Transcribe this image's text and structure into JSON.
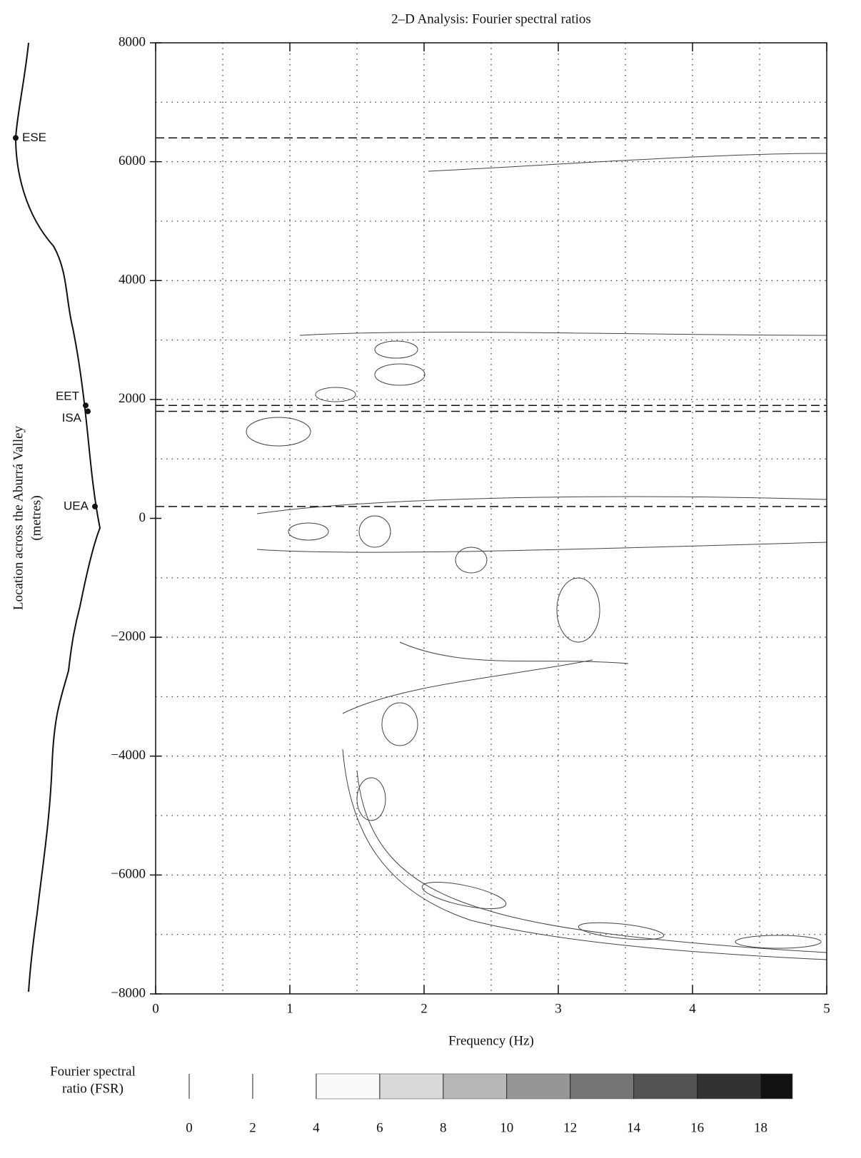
{
  "chart_data": {
    "type": "contour",
    "title": "2–D Analysis: Fourier spectral ratios",
    "x_label": "Frequency (Hz)",
    "y_label": [
      "Location across the Aburrá Valley",
      "(metres)"
    ],
    "xlim": [
      0,
      5
    ],
    "xticks": [
      0,
      1,
      2,
      3,
      4,
      5
    ],
    "ylim": [
      -8000,
      8000
    ],
    "yticks": [
      {
        "value": -8000,
        "label": "−8000"
      },
      {
        "value": -6000,
        "label": "−6000"
      },
      {
        "value": -4000,
        "label": "−4000"
      },
      {
        "value": -2000,
        "label": "−2000"
      },
      0,
      2000,
      4000,
      6000,
      8000
    ],
    "grid": true,
    "grid_x": [
      0.5,
      1,
      1.5,
      2,
      2.5,
      3,
      3.5,
      4,
      4.5
    ],
    "grid_y": [
      -7000,
      -6000,
      -5000,
      -4000,
      -3000,
      -2000,
      -1000,
      1000,
      2000,
      3000,
      4000,
      5000,
      6000,
      7000
    ],
    "stations": [
      {
        "name": "ESE",
        "location": 6400
      },
      {
        "name": "EET",
        "location": 1900
      },
      {
        "name": "ISA",
        "location": 1800
      },
      {
        "name": "UEA",
        "location": 200
      }
    ],
    "colorbar": {
      "label": [
        "Fourier spectral",
        "ratio (FSR)"
      ],
      "lim": [
        0,
        19
      ],
      "ticks": [
        0,
        2,
        4,
        6,
        8,
        10,
        12,
        14,
        16,
        18
      ],
      "shaded_from": 4
    }
  }
}
